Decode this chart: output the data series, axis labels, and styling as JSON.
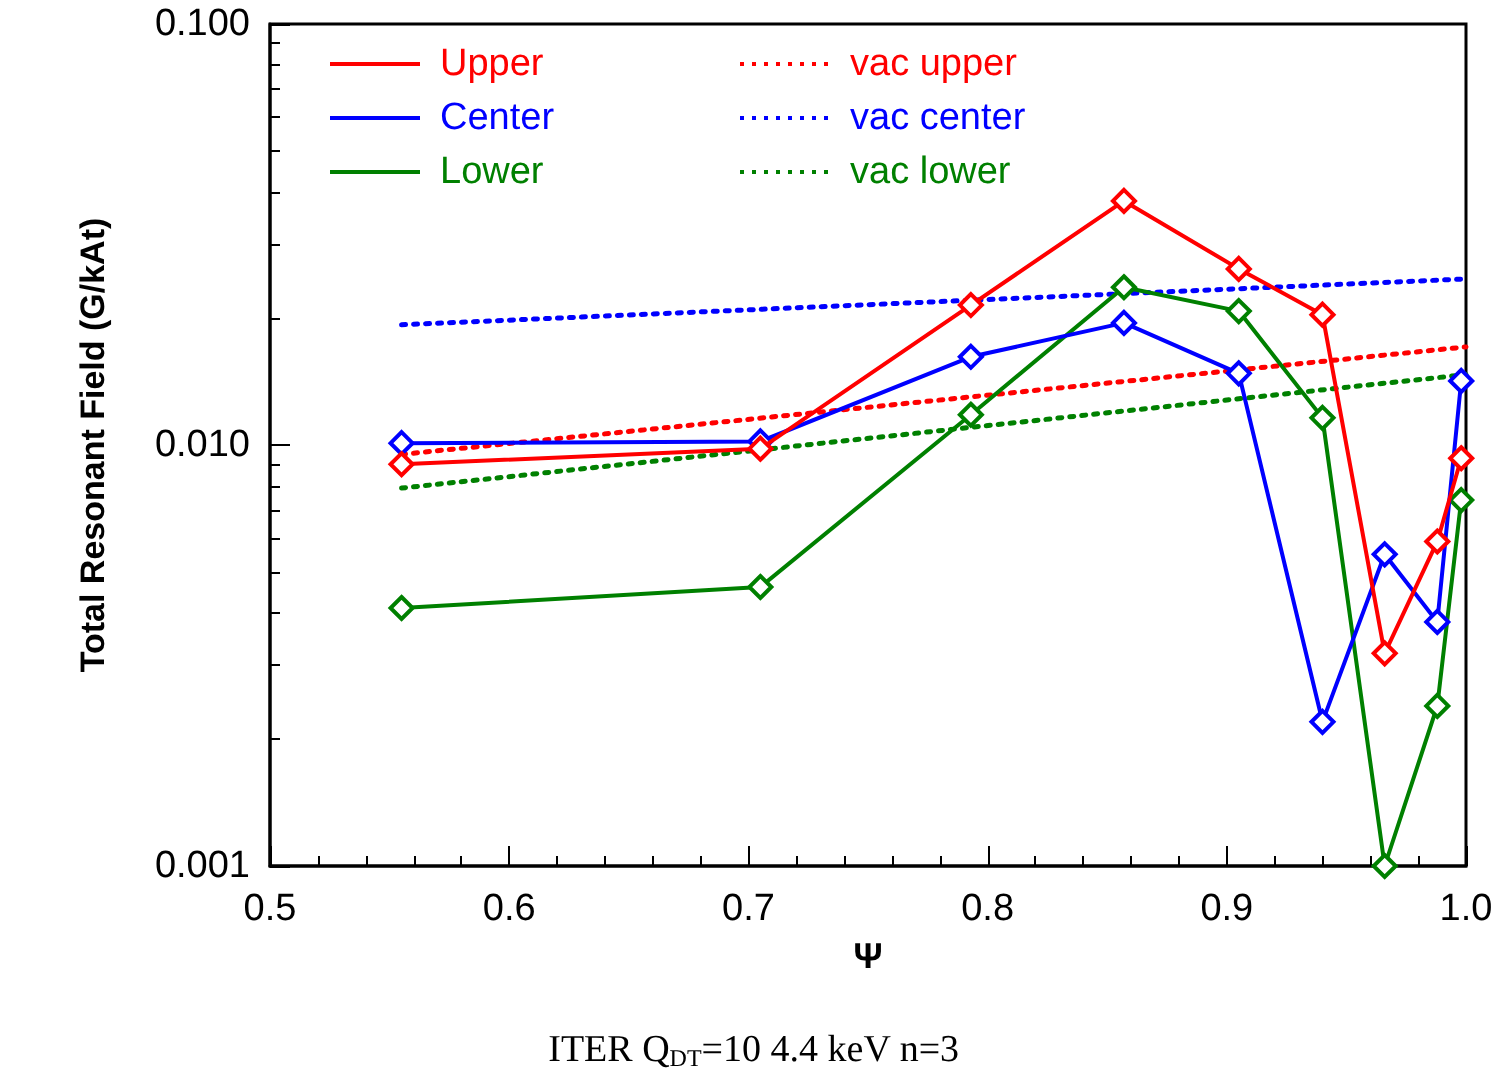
{
  "chart_data": {
    "type": "line",
    "xlabel": "Ψ",
    "ylabel": "Total Resonant Field (G/kAt)",
    "annotations": [
      "ITER Q$_{DT}$=10 4.4 keV n=3"
    ],
    "xlim": [
      0.5,
      1.0
    ],
    "xticks": [
      0.5,
      0.6,
      0.7,
      0.8,
      0.9,
      {
        "value": 1.0,
        "label": "1.0"
      }
    ],
    "ylim": [
      0.001,
      0.1
    ],
    "yticks": [
      {
        "value": 0.001,
        "label": "0.001"
      },
      {
        "value": 0.01,
        "label": "0.010"
      },
      {
        "value": 0.1,
        "label": "0.100"
      }
    ],
    "log": "y",
    "grid": false,
    "legend": "top left",
    "series": [
      {
        "name": "Upper",
        "color": "#ff0000",
        "marker": "diamond",
        "line_style": "solid",
        "x": [
          0.555,
          0.705,
          0.793,
          0.857,
          0.905,
          0.94,
          0.966,
          0.988,
          0.998
        ],
        "values": [
          0.009,
          0.0098,
          0.0215,
          0.038,
          0.0262,
          0.0204,
          0.0032,
          0.0059,
          0.0093
        ]
      },
      {
        "name": "Center",
        "color": "#0000ff",
        "marker": "diamond",
        "line_style": "solid",
        "x": [
          0.555,
          0.705,
          0.793,
          0.857,
          0.905,
          0.94,
          0.966,
          0.988,
          0.998
        ],
        "values": [
          0.0101,
          0.0102,
          0.0162,
          0.0195,
          0.0148,
          0.0022,
          0.0055,
          0.0038,
          0.0142
        ]
      },
      {
        "name": "Lower",
        "color": "#008000",
        "marker": "diamond",
        "line_style": "solid",
        "x": [
          0.555,
          0.705,
          0.793,
          0.857,
          0.905,
          0.94,
          0.966,
          0.988,
          0.998
        ],
        "values": [
          0.0041,
          0.0046,
          0.0118,
          0.0237,
          0.0208,
          0.0116,
          0.001,
          0.0024,
          0.0074
        ]
      },
      {
        "name": "vac upper",
        "color": "#ff0000",
        "marker": "none",
        "line_style": "dotted",
        "x": [
          0.555,
          1.0
        ],
        "values": [
          0.0095,
          0.0171
        ]
      },
      {
        "name": "vac center",
        "color": "#0000ff",
        "marker": "none",
        "line_style": "dotted",
        "x": [
          0.555,
          1.0
        ],
        "values": [
          0.0193,
          0.0248
        ]
      },
      {
        "name": "vac lower",
        "color": "#008000",
        "marker": "none",
        "line_style": "dotted",
        "x": [
          0.555,
          1.0
        ],
        "values": [
          0.0079,
          0.0147
        ]
      }
    ]
  }
}
